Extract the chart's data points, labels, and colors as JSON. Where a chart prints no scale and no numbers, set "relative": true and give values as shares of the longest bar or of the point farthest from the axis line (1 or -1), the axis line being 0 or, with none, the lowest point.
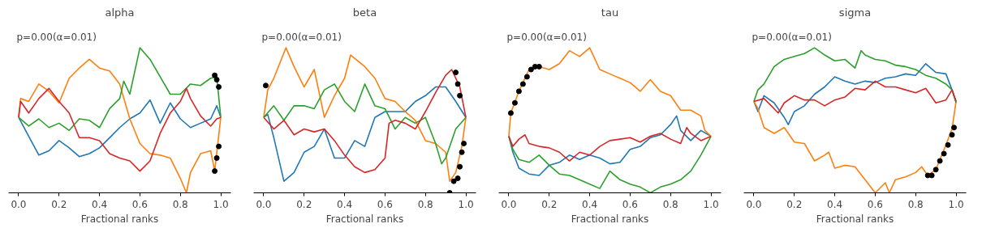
{
  "chart_data": [
    {
      "type": "line",
      "title": "alpha",
      "xlabel": "Fractional ranks",
      "relative": true,
      "tick_labels": "x",
      "xlim": [
        -0.05,
        1.05
      ],
      "xticks": [
        {
          "value": 0,
          "label": "0.0"
        },
        {
          "value": 0.2,
          "label": "0.2"
        },
        {
          "value": 0.4,
          "label": "0.4"
        },
        {
          "value": 0.6,
          "label": "0.6"
        },
        {
          "value": 0.8,
          "label": "0.8"
        },
        {
          "value": 1,
          "label": "1.0"
        }
      ],
      "annotations": [
        "p=0.00(α=0.01)"
      ],
      "series": [
        {
          "color": "#1f77b4",
          "x": [
            0,
            0.05,
            0.1,
            0.15,
            0.2,
            0.25,
            0.3,
            0.35,
            0.4,
            0.45,
            0.5,
            0.55,
            0.6,
            0.65,
            0.7,
            0.75,
            0.8,
            0.85,
            0.9,
            0.95,
            0.98,
            1.0
          ],
          "values": [
            0.52,
            0.39,
            0.26,
            0.29,
            0.36,
            0.31,
            0.25,
            0.27,
            0.31,
            0.38,
            0.45,
            0.51,
            0.55,
            0.64,
            0.48,
            0.62,
            0.51,
            0.45,
            0.48,
            0.51,
            0.6,
            0.52
          ]
        },
        {
          "color": "#ff7f0e",
          "x": [
            0,
            0.01,
            0.05,
            0.1,
            0.15,
            0.2,
            0.25,
            0.3,
            0.35,
            0.4,
            0.45,
            0.5,
            0.55,
            0.6,
            0.65,
            0.7,
            0.75,
            0.8,
            0.83,
            0.85,
            0.9,
            0.95,
            0.97,
            1.0
          ],
          "values": [
            0.52,
            0.65,
            0.63,
            0.75,
            0.7,
            0.62,
            0.79,
            0.86,
            0.92,
            0.86,
            0.84,
            0.75,
            0.51,
            0.34,
            0.27,
            0.26,
            0.24,
            0.1,
            0,
            0.14,
            0.27,
            0.29,
            0.15,
            0.52
          ]
        },
        {
          "color": "#2ca02c",
          "x": [
            0,
            0.05,
            0.1,
            0.15,
            0.2,
            0.25,
            0.3,
            0.35,
            0.4,
            0.45,
            0.5,
            0.52,
            0.55,
            0.6,
            0.65,
            0.7,
            0.75,
            0.8,
            0.85,
            0.9,
            0.95,
            0.98,
            1.0
          ],
          "values": [
            0.52,
            0.46,
            0.51,
            0.45,
            0.48,
            0.43,
            0.51,
            0.5,
            0.45,
            0.58,
            0.65,
            0.77,
            0.68,
            1.0,
            0.92,
            0.8,
            0.68,
            0.68,
            0.75,
            0.74,
            0.79,
            0.8,
            0.52
          ]
        },
        {
          "color": "#d62728",
          "x": [
            0,
            0.01,
            0.05,
            0.1,
            0.15,
            0.2,
            0.25,
            0.3,
            0.35,
            0.4,
            0.45,
            0.5,
            0.55,
            0.6,
            0.65,
            0.7,
            0.75,
            0.8,
            0.83,
            0.85,
            0.9,
            0.95,
            0.98,
            1.0
          ],
          "values": [
            0.52,
            0.63,
            0.55,
            0.65,
            0.72,
            0.63,
            0.55,
            0.38,
            0.38,
            0.36,
            0.27,
            0.24,
            0.22,
            0.15,
            0.22,
            0.41,
            0.55,
            0.63,
            0.72,
            0.65,
            0.53,
            0.46,
            0.51,
            0.52
          ]
        },
        {
          "type": "scatter",
          "marker": "circle",
          "color": "#000000",
          "x": [
            0.97,
            0.98,
            0.99,
            0.97,
            0.98,
            0.99
          ],
          "values": [
            0.15,
            0.24,
            0.32,
            0.81,
            0.78,
            0.73
          ]
        }
      ]
    },
    {
      "type": "line",
      "title": "beta",
      "xlabel": "Fractional ranks",
      "relative": true,
      "tick_labels": "x",
      "xlim": [
        -0.05,
        1.05
      ],
      "xticks": [
        {
          "value": 0,
          "label": "0.0"
        },
        {
          "value": 0.2,
          "label": "0.2"
        },
        {
          "value": 0.4,
          "label": "0.4"
        },
        {
          "value": 0.6,
          "label": "0.6"
        },
        {
          "value": 0.8,
          "label": "0.8"
        },
        {
          "value": 1,
          "label": "1.0"
        }
      ],
      "annotations": [
        "p=0.00(α=0.01)"
      ],
      "series": [
        {
          "color": "#1f77b4",
          "x": [
            0,
            0.02,
            0.05,
            0.1,
            0.15,
            0.2,
            0.25,
            0.3,
            0.35,
            0.4,
            0.45,
            0.5,
            0.55,
            0.6,
            0.65,
            0.7,
            0.75,
            0.8,
            0.85,
            0.9,
            0.95,
            1.0
          ],
          "values": [
            0.52,
            0.54,
            0.38,
            0.08,
            0.14,
            0.28,
            0.32,
            0.44,
            0.24,
            0.24,
            0.36,
            0.32,
            0.52,
            0.56,
            0.56,
            0.56,
            0.63,
            0.67,
            0.73,
            0.73,
            0.63,
            0.52
          ]
        },
        {
          "color": "#ff7f0e",
          "x": [
            0,
            0.02,
            0.05,
            0.11,
            0.15,
            0.2,
            0.25,
            0.3,
            0.35,
            0.4,
            0.43,
            0.5,
            0.55,
            0.6,
            0.65,
            0.7,
            0.75,
            0.8,
            0.85,
            0.9,
            0.92,
            0.95,
            0.98,
            1.0
          ],
          "values": [
            0.52,
            0.71,
            0.79,
            1.0,
            0.87,
            0.73,
            0.85,
            0.52,
            0.67,
            0.79,
            0.95,
            0.87,
            0.79,
            0.65,
            0.63,
            0.56,
            0.5,
            0.36,
            0.34,
            0.28,
            0.08,
            0.14,
            0.32,
            0.52
          ]
        },
        {
          "color": "#2ca02c",
          "x": [
            0,
            0.05,
            0.1,
            0.15,
            0.2,
            0.25,
            0.3,
            0.35,
            0.4,
            0.45,
            0.5,
            0.55,
            0.6,
            0.65,
            0.7,
            0.75,
            0.8,
            0.85,
            0.88,
            0.9,
            0.95,
            1.0
          ],
          "values": [
            0.52,
            0.6,
            0.5,
            0.6,
            0.6,
            0.58,
            0.71,
            0.75,
            0.63,
            0.56,
            0.75,
            0.6,
            0.58,
            0.44,
            0.52,
            0.48,
            0.52,
            0.34,
            0.2,
            0.24,
            0.44,
            0.52
          ]
        },
        {
          "color": "#d62728",
          "x": [
            0,
            0.05,
            0.1,
            0.15,
            0.2,
            0.25,
            0.3,
            0.35,
            0.4,
            0.45,
            0.5,
            0.55,
            0.6,
            0.62,
            0.65,
            0.7,
            0.75,
            0.8,
            0.85,
            0.9,
            0.93,
            0.97,
            1.0
          ],
          "values": [
            0.52,
            0.44,
            0.5,
            0.4,
            0.44,
            0.42,
            0.44,
            0.36,
            0.26,
            0.18,
            0.14,
            0.16,
            0.24,
            0.48,
            0.5,
            0.48,
            0.44,
            0.56,
            0.69,
            0.81,
            0.85,
            0.73,
            0.52
          ]
        },
        {
          "type": "scatter",
          "marker": "circle",
          "color": "#000000",
          "x": [
            0.01,
            0.92,
            0.94,
            0.96,
            0.97,
            0.98,
            0.99,
            0.95,
            0.96,
            0.97
          ],
          "values": [
            0.74,
            0,
            0.08,
            0.1,
            0.18,
            0.28,
            0.34,
            0.83,
            0.75,
            0.67
          ]
        }
      ]
    },
    {
      "type": "line",
      "title": "tau",
      "xlabel": "Fractional ranks",
      "relative": true,
      "tick_labels": "x",
      "xlim": [
        -0.05,
        1.05
      ],
      "xticks": [
        {
          "value": 0,
          "label": "0.0"
        },
        {
          "value": 0.2,
          "label": "0.2"
        },
        {
          "value": 0.4,
          "label": "0.4"
        },
        {
          "value": 0.6,
          "label": "0.6"
        },
        {
          "value": 0.8,
          "label": "0.8"
        },
        {
          "value": 1,
          "label": "1.0"
        }
      ],
      "annotations": [
        "p=0.00(α=0.01)"
      ],
      "series": [
        {
          "color": "#1f77b4",
          "x": [
            0,
            0.02,
            0.05,
            0.1,
            0.15,
            0.2,
            0.25,
            0.3,
            0.35,
            0.4,
            0.45,
            0.5,
            0.55,
            0.6,
            0.65,
            0.7,
            0.75,
            0.8,
            0.83,
            0.85,
            0.9,
            0.95,
            1.0
          ],
          "values": [
            0.39,
            0.28,
            0.17,
            0.13,
            0.12,
            0.19,
            0.21,
            0.26,
            0.23,
            0.26,
            0.24,
            0.2,
            0.21,
            0.3,
            0.32,
            0.38,
            0.4,
            0.47,
            0.53,
            0.43,
            0.36,
            0.43,
            0.39
          ]
        },
        {
          "color": "#ff7f0e",
          "x": [
            0,
            0.01,
            0.05,
            0.1,
            0.15,
            0.2,
            0.25,
            0.3,
            0.35,
            0.4,
            0.45,
            0.5,
            0.55,
            0.6,
            0.65,
            0.7,
            0.75,
            0.8,
            0.85,
            0.9,
            0.95,
            0.97,
            1.0
          ],
          "values": [
            0.39,
            0.55,
            0.7,
            0.85,
            0.87,
            0.85,
            0.89,
            0.98,
            0.94,
            1.0,
            0.85,
            0.82,
            0.79,
            0.76,
            0.7,
            0.78,
            0.7,
            0.67,
            0.57,
            0.57,
            0.53,
            0.43,
            0.39
          ]
        },
        {
          "color": "#2ca02c",
          "x": [
            0,
            0.02,
            0.05,
            0.1,
            0.15,
            0.2,
            0.25,
            0.3,
            0.35,
            0.4,
            0.45,
            0.5,
            0.55,
            0.6,
            0.65,
            0.7,
            0.75,
            0.8,
            0.85,
            0.9,
            0.95,
            1.0
          ],
          "values": [
            0.39,
            0.3,
            0.23,
            0.21,
            0.26,
            0.19,
            0.13,
            0.12,
            0.09,
            0.06,
            0.03,
            0.15,
            0.09,
            0.06,
            0.04,
            0,
            0.04,
            0.06,
            0.09,
            0.15,
            0.26,
            0.39
          ]
        },
        {
          "color": "#d62728",
          "x": [
            0,
            0.02,
            0.05,
            0.08,
            0.1,
            0.15,
            0.2,
            0.25,
            0.3,
            0.35,
            0.4,
            0.45,
            0.5,
            0.55,
            0.6,
            0.65,
            0.7,
            0.75,
            0.8,
            0.85,
            0.88,
            0.9,
            0.95,
            1.0
          ],
          "values": [
            0.39,
            0.32,
            0.37,
            0.4,
            0.34,
            0.32,
            0.31,
            0.28,
            0.22,
            0.28,
            0.26,
            0.32,
            0.36,
            0.37,
            0.38,
            0.35,
            0.39,
            0.41,
            0.37,
            0.34,
            0.45,
            0.41,
            0.36,
            0.39
          ]
        },
        {
          "type": "scatter",
          "marker": "circle",
          "color": "#000000",
          "x": [
            0.01,
            0.03,
            0.05,
            0.07,
            0.09,
            0.11,
            0.13,
            0.15
          ],
          "values": [
            0.55,
            0.62,
            0.7,
            0.75,
            0.8,
            0.85,
            0.87,
            0.87
          ]
        }
      ]
    },
    {
      "type": "line",
      "title": "sigma",
      "xlabel": "Fractional ranks",
      "relative": true,
      "tick_labels": "x",
      "xlim": [
        -0.05,
        1.05
      ],
      "xticks": [
        {
          "value": 0,
          "label": "0.0"
        },
        {
          "value": 0.2,
          "label": "0.2"
        },
        {
          "value": 0.4,
          "label": "0.4"
        },
        {
          "value": 0.6,
          "label": "0.6"
        },
        {
          "value": 0.8,
          "label": "0.8"
        },
        {
          "value": 1,
          "label": "1.0"
        }
      ],
      "annotations": [
        "p=0.00(α=0.01)"
      ],
      "series": [
        {
          "color": "#1f77b4",
          "x": [
            0,
            0.02,
            0.05,
            0.1,
            0.15,
            0.17,
            0.2,
            0.25,
            0.3,
            0.35,
            0.4,
            0.45,
            0.5,
            0.55,
            0.6,
            0.65,
            0.7,
            0.75,
            0.8,
            0.85,
            0.9,
            0.95,
            0.98,
            1.0
          ],
          "values": [
            0.63,
            0.56,
            0.67,
            0.62,
            0.52,
            0.47,
            0.56,
            0.6,
            0.68,
            0.73,
            0.8,
            0.77,
            0.75,
            0.77,
            0.76,
            0.79,
            0.8,
            0.82,
            0.81,
            0.89,
            0.83,
            0.82,
            0.71,
            0.63
          ]
        },
        {
          "color": "#ff7f0e",
          "x": [
            0,
            0.02,
            0.05,
            0.1,
            0.15,
            0.2,
            0.25,
            0.3,
            0.35,
            0.37,
            0.4,
            0.45,
            0.5,
            0.55,
            0.6,
            0.65,
            0.67,
            0.7,
            0.75,
            0.8,
            0.83,
            0.86,
            0.9,
            0.95,
            0.98,
            1.0
          ],
          "values": [
            0.63,
            0.58,
            0.45,
            0.41,
            0.45,
            0.35,
            0.34,
            0.22,
            0.26,
            0.28,
            0.17,
            0.19,
            0.18,
            0.09,
            0,
            0.07,
            0,
            0.09,
            0.11,
            0.14,
            0.18,
            0.12,
            0.16,
            0.33,
            0.44,
            0.63
          ]
        },
        {
          "color": "#2ca02c",
          "x": [
            0,
            0.02,
            0.05,
            0.1,
            0.15,
            0.2,
            0.25,
            0.3,
            0.35,
            0.4,
            0.45,
            0.5,
            0.53,
            0.55,
            0.6,
            0.65,
            0.7,
            0.75,
            0.8,
            0.85,
            0.9,
            0.95,
            0.98,
            1.0
          ],
          "values": [
            0.63,
            0.71,
            0.75,
            0.87,
            0.92,
            0.94,
            0.96,
            1.0,
            0.95,
            0.91,
            0.92,
            0.86,
            0.98,
            0.95,
            0.92,
            0.91,
            0.88,
            0.87,
            0.85,
            0.81,
            0.79,
            0.75,
            0.71,
            0.62
          ]
        },
        {
          "color": "#d62728",
          "x": [
            0,
            0.05,
            0.1,
            0.12,
            0.15,
            0.2,
            0.25,
            0.3,
            0.35,
            0.4,
            0.45,
            0.5,
            0.55,
            0.6,
            0.65,
            0.7,
            0.75,
            0.8,
            0.85,
            0.9,
            0.95,
            0.98,
            1.0
          ],
          "values": [
            0.63,
            0.65,
            0.58,
            0.55,
            0.62,
            0.67,
            0.64,
            0.64,
            0.6,
            0.64,
            0.66,
            0.72,
            0.71,
            0.77,
            0.73,
            0.73,
            0.71,
            0.69,
            0.72,
            0.62,
            0.64,
            0.71,
            0.63
          ]
        },
        {
          "type": "scatter",
          "marker": "circle",
          "color": "#000000",
          "x": [
            0.86,
            0.88,
            0.9,
            0.92,
            0.94,
            0.96,
            0.98,
            0.99
          ],
          "values": [
            0.12,
            0.12,
            0.16,
            0.22,
            0.27,
            0.33,
            0.4,
            0.45
          ]
        }
      ]
    }
  ]
}
